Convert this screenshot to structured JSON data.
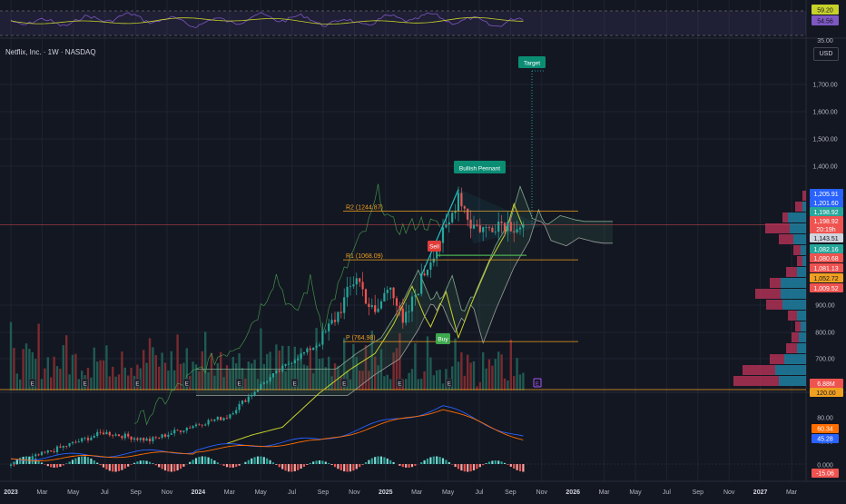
{
  "header": {
    "symbol_title": "Netflix, Inc. · 1W · NASDAQ",
    "currency": "USD"
  },
  "colors": {
    "bg": "#131722",
    "grid": "#1f2330",
    "up": "#26a69a",
    "down": "#ef5350",
    "ma": "#c7d22a",
    "cloud": "#7fa98b",
    "pennant": "#22c1c3",
    "macd": "#2962ff",
    "signal": "#ff6d00",
    "rsi": "#7e57c2",
    "rsi_ma": "#c7d22a",
    "level": "#f0a020"
  },
  "rsi_panel": {
    "levels": [
      "59.20",
      "54.56"
    ],
    "level_colors": [
      "#c7d22a",
      "#7e57c2"
    ],
    "tick": "35.00"
  },
  "price_axis": {
    "ticks": [
      {
        "label": "1,700.00",
        "v": 1700
      },
      {
        "label": "1,600.00",
        "v": 1600
      },
      {
        "label": "1,500.00",
        "v": 1500
      },
      {
        "label": "1,400.00",
        "v": 1400
      },
      {
        "label": "900.00",
        "v": 900
      },
      {
        "label": "800.00",
        "v": 800
      },
      {
        "label": "700.00",
        "v": 700
      }
    ],
    "badges": [
      {
        "label": "1,205.91",
        "color": "#2962ff"
      },
      {
        "label": "1,201.60",
        "color": "#2962ff"
      },
      {
        "label": "1,198.92",
        "color": "#26a69a"
      },
      {
        "label": "1,198.92",
        "color": "#ef5350"
      },
      {
        "label": "20:19h",
        "color": "#ef5350"
      },
      {
        "label": "1,143.51",
        "color": "#d1d4dc"
      },
      {
        "label": "1,082.16",
        "color": "#26a69a"
      },
      {
        "label": "1,080.68",
        "color": "#ef5350"
      },
      {
        "label": "1,081.13",
        "color": "#ef5350"
      },
      {
        "label": "1,052.72",
        "color": "#f0a020"
      },
      {
        "label": "1,009.52",
        "color": "#ef5350"
      },
      {
        "label": "6.88M",
        "color": "#ef5350"
      },
      {
        "label": "120.00",
        "color": "#f0a020"
      }
    ]
  },
  "macd_panel": {
    "ticks": [
      "80.00",
      "40.00",
      "0.000"
    ],
    "badges": [
      {
        "label": "60.34",
        "color": "#ff6d00"
      },
      {
        "label": "45.28",
        "color": "#2962ff"
      },
      {
        "label": "-15.06",
        "color": "#ef5350"
      }
    ]
  },
  "time_axis": [
    "2023",
    "Mar",
    "May",
    "Jul",
    "Sep",
    "Nov",
    "2024",
    "Mar",
    "May",
    "Jul",
    "Sep",
    "Nov",
    "2025",
    "Mar",
    "May",
    "Jul",
    "Sep",
    "Nov",
    "2026",
    "Mar",
    "May",
    "Jul",
    "Sep",
    "Nov",
    "2027",
    "Mar"
  ],
  "annotations": {
    "target": "Target",
    "pennant": "Bullish Pennant",
    "sell": "Sell",
    "buy": "Buy",
    "r2": "R2 (1244.87)",
    "r1": "R1 (1068.09)",
    "p": "P (764.98)",
    "earnings": "E"
  },
  "chart_data": {
    "type": "candlestick",
    "title": "Netflix, Inc. · 1W · NASDAQ",
    "currency": "USD",
    "x_range": [
      "2023-01",
      "2027-03"
    ],
    "price_axis_labels": [
      700,
      800,
      900,
      1400,
      1500,
      1600,
      1700
    ],
    "pivot_levels": {
      "R2": 1244.87,
      "R1": 1068.09,
      "P": 764.98
    },
    "last_price": 1198.92,
    "volume_last": "6.88M",
    "pattern": "Bullish Pennant",
    "signals": [
      "Sell",
      "Buy",
      "Target"
    ],
    "macd": {
      "signal": 60.34,
      "macd": 45.28,
      "histogram": -15.06
    },
    "rsi": {
      "rsi": 54.56,
      "rsi_ma": 59.2
    }
  }
}
